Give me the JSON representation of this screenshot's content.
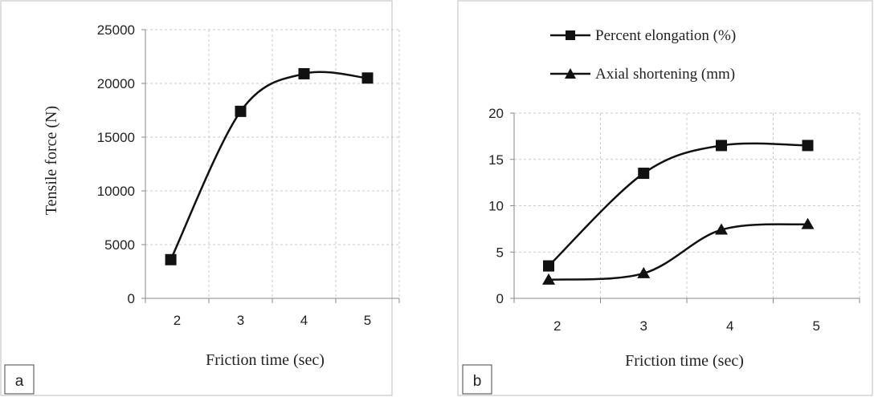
{
  "chart_data": [
    {
      "type": "line",
      "panel_label": "a",
      "xlabel": "Friction time (sec)",
      "ylabel": "Tensile force (N)",
      "x_ticks": [
        "2",
        "3",
        "4",
        "5"
      ],
      "y_ticks": [
        "0",
        "5000",
        "10000",
        "15000",
        "20000",
        "25000"
      ],
      "ylim": [
        0,
        25000
      ],
      "grid": true,
      "series": [
        {
          "marker": "square",
          "x": [
            1.9,
            3.0,
            4.0,
            5.0
          ],
          "values": [
            3600,
            17400,
            20900,
            20500
          ]
        }
      ]
    },
    {
      "type": "line",
      "panel_label": "b",
      "xlabel": "Friction time (sec)",
      "ylabel": "",
      "x_ticks": [
        "2",
        "3",
        "4",
        "5"
      ],
      "y_ticks": [
        "0",
        "5",
        "10",
        "15",
        "20"
      ],
      "ylim": [
        0,
        20
      ],
      "grid": true,
      "legend_position": "top",
      "series": [
        {
          "name": "Percent elongation (%)",
          "marker": "square",
          "x": [
            1.9,
            3.0,
            3.9,
            4.9
          ],
          "values": [
            3.5,
            13.5,
            16.5,
            16.5
          ]
        },
        {
          "name": "Axial shortening (mm)",
          "marker": "triangle",
          "x": [
            1.9,
            3.0,
            3.9,
            4.9
          ],
          "values": [
            2.0,
            2.7,
            7.4,
            8.0
          ]
        }
      ]
    }
  ]
}
